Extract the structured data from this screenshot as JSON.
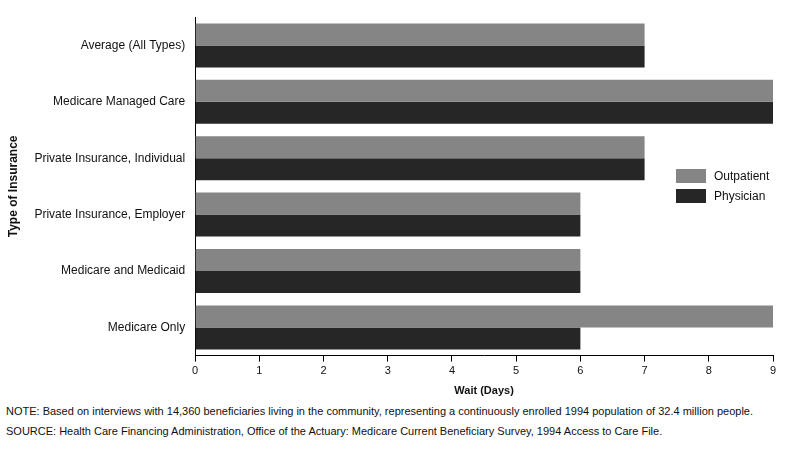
{
  "chart_data": {
    "type": "bar",
    "orientation": "horizontal",
    "categories": [
      "Average (All Types)",
      "Medicare Managed Care",
      "Private Insurance, Individual",
      "Private Insurance, Employer",
      "Medicare and Medicaid",
      "Medicare Only"
    ],
    "series": [
      {
        "name": "Outpatient",
        "color": "#858585",
        "values": [
          7,
          9,
          7,
          6,
          6,
          9
        ]
      },
      {
        "name": "Physician",
        "color": "#262626",
        "values": [
          7,
          9,
          7,
          6,
          6,
          6
        ]
      }
    ],
    "x_label": "Wait (Days)",
    "y_label": "Type of Insurance",
    "xlim": [
      0,
      9
    ],
    "xticks": [
      0,
      1,
      2,
      3,
      4,
      5,
      6,
      7,
      8,
      9
    ],
    "grid": false,
    "legend": "right",
    "notes": [
      "NOTE: Based on interviews with 14,360 beneficiaries living in the community, representing a continuously enrolled 1994 population of 32.4 million people.",
      "SOURCE: Health Care Financing Administration, Office of the Actuary: Medicare Current Beneficiary Survey, 1994 Access to Care File."
    ]
  }
}
